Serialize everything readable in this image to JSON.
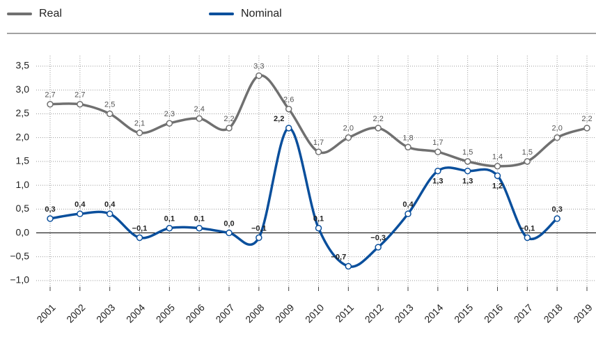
{
  "chart_data": {
    "type": "line",
    "categories": [
      "2001",
      "2002",
      "2003",
      "2004",
      "2005",
      "2006",
      "2007",
      "2008",
      "2009",
      "2010",
      "2011",
      "2012",
      "2013",
      "2014",
      "2015",
      "2016",
      "2017",
      "2018",
      "2019"
    ],
    "series": [
      {
        "name": "Real",
        "color": "#707070",
        "values": [
          2.7,
          2.7,
          2.5,
          2.1,
          2.3,
          2.4,
          2.2,
          3.3,
          2.6,
          1.7,
          2.0,
          2.2,
          1.8,
          1.7,
          1.5,
          1.4,
          1.5,
          2.0,
          2.2
        ],
        "value_labels": [
          "2,7",
          "2,7",
          "2,5",
          "2,1",
          "2,3",
          "2,4",
          "2,2",
          "3,3",
          "2,6",
          "1,7",
          "2,0",
          "2,2",
          "1,8",
          "1,7",
          "1,5",
          "1,4",
          "1,5",
          "2,0",
          "2,2"
        ]
      },
      {
        "name": "Nominal",
        "color": "#0a4f9c",
        "values": [
          0.3,
          0.4,
          0.4,
          -0.1,
          0.1,
          0.1,
          0.0,
          -0.1,
          2.2,
          0.1,
          -0.7,
          -0.3,
          0.4,
          1.3,
          1.3,
          1.2,
          -0.1,
          0.3,
          null
        ],
        "value_labels": [
          "0,3",
          "0,4",
          "0,4",
          "−0,1",
          "0,1",
          "0,1",
          "0,0",
          "−0,1",
          "2,2",
          "0,1",
          "−0,7",
          "−0,3",
          "0,4",
          "1,3",
          "1,3",
          "1,2",
          "−0,1",
          "0,3",
          null
        ]
      }
    ],
    "ylim": [
      -1.0,
      3.5
    ],
    "yticks": [
      {
        "value": -1.0,
        "label": "−1,0"
      },
      {
        "value": -0.5,
        "label": "−0,5"
      },
      {
        "value": 0.0,
        "label": "0,0"
      },
      {
        "value": 0.5,
        "label": "0,5"
      },
      {
        "value": 1.0,
        "label": "1,0"
      },
      {
        "value": 1.5,
        "label": "1,5"
      },
      {
        "value": 2.0,
        "label": "2,0"
      },
      {
        "value": 2.5,
        "label": "2,5"
      },
      {
        "value": 3.0,
        "label": "3,0"
      },
      {
        "value": 3.5,
        "label": "3,5"
      }
    ],
    "grid": true,
    "legend": "top"
  }
}
